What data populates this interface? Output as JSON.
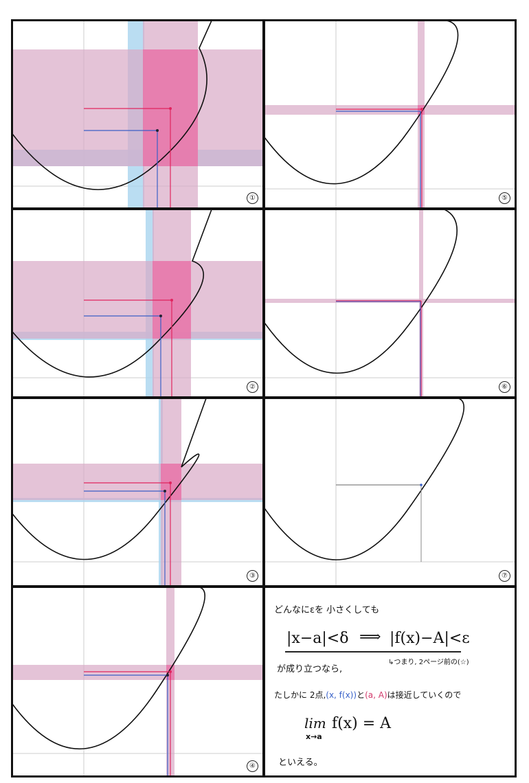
{
  "panels": [
    {
      "id": 1,
      "label": "①"
    },
    {
      "id": 2,
      "label": "②"
    },
    {
      "id": 3,
      "label": "③"
    },
    {
      "id": 4,
      "label": "④"
    },
    {
      "id": 5,
      "label": "⑤"
    },
    {
      "id": 6,
      "label": "⑥"
    },
    {
      "id": 7,
      "label": "⑦"
    }
  ],
  "note": {
    "line1": "どんなにεを 小さくしても",
    "implication_left": "|x−a|<δ",
    "arrow": "⟹",
    "implication_right": "|f(x)−A|<ε",
    "subnote": "↳つまり, 2ページ前の(☆)",
    "line3": "が成り立つなら,",
    "line4_a": "たしかに 2点,",
    "line4_p1": "(x, f(x))",
    "line4_b": "と",
    "line4_p2": "(a, A)",
    "line4_c": "は接近していくので",
    "lim_word": "lim",
    "lim_sub": "x→a",
    "lim_expr": "f(x) = A",
    "conclusion": "といえる。"
  },
  "colors": {
    "pink_band": "#d9a9c6",
    "pink_strong": "#ee5d9c",
    "blue_band": "#a9d4ef",
    "curve": "#111111",
    "red_line": "#e0245e",
    "blue_line": "#3a5fc6"
  }
}
